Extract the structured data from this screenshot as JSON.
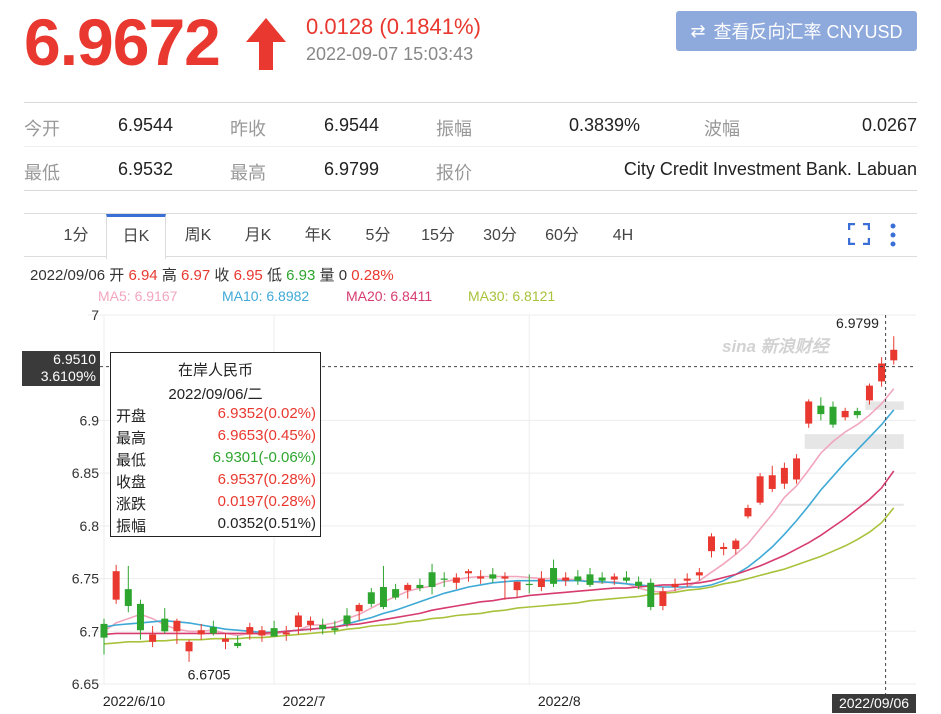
{
  "header": {
    "price": "6.9672",
    "change": "0.0128 (0.1841%)",
    "timestamp": "2022-09-07 15:03:43",
    "reverse_button": "查看反向汇率 CNYUSD",
    "icons": {
      "arrow": "arrow-up-icon",
      "swap": "swap-icon"
    },
    "colors": {
      "up": "#e8382f",
      "button": "#8ea9dc"
    }
  },
  "stats": {
    "row1": [
      {
        "label": "今开",
        "value": "6.9544"
      },
      {
        "label": "昨收",
        "value": "6.9544"
      },
      {
        "label": "振幅",
        "value": "0.3839%"
      },
      {
        "label": "波幅",
        "value": "0.0267"
      }
    ],
    "row2": [
      {
        "label": "最低",
        "value": "6.9532"
      },
      {
        "label": "最高",
        "value": "6.9799"
      },
      {
        "label": "报价",
        "value": "City Credit Investment Bank. Labuan"
      }
    ]
  },
  "tabs": [
    "1分",
    "日K",
    "周K",
    "月K",
    "年K",
    "5分",
    "15分",
    "30分",
    "60分",
    "4H"
  ],
  "active_tab": "日K",
  "info": {
    "date": "2022/09/06",
    "open_label": "开",
    "open": "6.94",
    "high_label": "高",
    "high": "6.97",
    "close_label": "收",
    "close": "6.95",
    "low_label": "低",
    "low": "6.93",
    "vol_label": "量",
    "vol": "0",
    "pct": "0.28%"
  },
  "ma": [
    {
      "text": "MA5: 6.9167",
      "color": "#f2a6bd"
    },
    {
      "text": "MA10: 6.8982",
      "color": "#3fa9d6"
    },
    {
      "text": "MA20: 6.8411",
      "color": "#d63c6e"
    },
    {
      "text": "MA30: 6.8121",
      "color": "#a8c23c"
    }
  ],
  "tooltip": {
    "title": "在岸人民币",
    "date": "2022/09/06/二",
    "rows": [
      {
        "k": "开盘",
        "v": "6.9352(0.02%)",
        "color": "#e8382f"
      },
      {
        "k": "最高",
        "v": "6.9653(0.45%)",
        "color": "#e8382f"
      },
      {
        "k": "最低",
        "v": "6.9301(-0.06%)",
        "color": "#2ea52e"
      },
      {
        "k": "收盘",
        "v": "6.9537(0.28%)",
        "color": "#e8382f"
      },
      {
        "k": "涨跌",
        "v": "0.0197(0.28%)",
        "color": "#e8382f"
      },
      {
        "k": "振幅",
        "v": "0.0352(0.51%)",
        "color": "#222222"
      }
    ]
  },
  "crosshair": {
    "price": "6.9510",
    "pct": "3.6109%",
    "date": "2022/09/06"
  },
  "watermark": "sina 新浪财经",
  "chart_data": {
    "type": "candlestick",
    "ylim": [
      6.65,
      7.0
    ],
    "yticks": [
      7,
      6.9,
      6.85,
      6.8,
      6.75,
      6.7,
      6.65
    ],
    "xtick_labels": [
      {
        "label": "2022/6/10",
        "index": 0
      },
      {
        "label": "2022/7",
        "index": 14
      },
      {
        "label": "2022/8",
        "index": 35
      }
    ],
    "max_label": {
      "text": "6.9799",
      "index": 63,
      "value": 6.9799
    },
    "min_label": {
      "text": "6.6705",
      "index": 7,
      "value": 6.6705
    },
    "candles": [
      {
        "o": 6.707,
        "h": 6.712,
        "l": 6.678,
        "c": 6.694
      },
      {
        "o": 6.73,
        "h": 6.763,
        "l": 6.726,
        "c": 6.757
      },
      {
        "o": 6.74,
        "h": 6.762,
        "l": 6.718,
        "c": 6.724
      },
      {
        "o": 6.726,
        "h": 6.73,
        "l": 6.692,
        "c": 6.701
      },
      {
        "o": 6.69,
        "h": 6.705,
        "l": 6.685,
        "c": 6.697
      },
      {
        "o": 6.712,
        "h": 6.722,
        "l": 6.698,
        "c": 6.7
      },
      {
        "o": 6.7,
        "h": 6.712,
        "l": 6.688,
        "c": 6.71
      },
      {
        "o": 6.681,
        "h": 6.692,
        "l": 6.671,
        "c": 6.69
      },
      {
        "o": 6.697,
        "h": 6.707,
        "l": 6.692,
        "c": 6.701
      },
      {
        "o": 6.704,
        "h": 6.71,
        "l": 6.696,
        "c": 6.698
      },
      {
        "o": 6.69,
        "h": 6.698,
        "l": 6.683,
        "c": 6.693
      },
      {
        "o": 6.689,
        "h": 6.696,
        "l": 6.684,
        "c": 6.686
      },
      {
        "o": 6.697,
        "h": 6.708,
        "l": 6.692,
        "c": 6.704
      },
      {
        "o": 6.696,
        "h": 6.705,
        "l": 6.69,
        "c": 6.701
      },
      {
        "o": 6.703,
        "h": 6.71,
        "l": 6.695,
        "c": 6.695
      },
      {
        "o": 6.697,
        "h": 6.705,
        "l": 6.691,
        "c": 6.699
      },
      {
        "o": 6.704,
        "h": 6.718,
        "l": 6.697,
        "c": 6.715
      },
      {
        "o": 6.706,
        "h": 6.714,
        "l": 6.7,
        "c": 6.71
      },
      {
        "o": 6.706,
        "h": 6.712,
        "l": 6.697,
        "c": 6.702
      },
      {
        "o": 6.703,
        "h": 6.71,
        "l": 6.697,
        "c": 6.701
      },
      {
        "o": 6.715,
        "h": 6.722,
        "l": 6.704,
        "c": 6.707
      },
      {
        "o": 6.719,
        "h": 6.727,
        "l": 6.71,
        "c": 6.725
      },
      {
        "o": 6.737,
        "h": 6.741,
        "l": 6.723,
        "c": 6.726
      },
      {
        "o": 6.742,
        "h": 6.762,
        "l": 6.721,
        "c": 6.723
      },
      {
        "o": 6.74,
        "h": 6.745,
        "l": 6.73,
        "c": 6.732
      },
      {
        "o": 6.739,
        "h": 6.746,
        "l": 6.731,
        "c": 6.744
      },
      {
        "o": 6.744,
        "h": 6.75,
        "l": 6.738,
        "c": 6.741
      },
      {
        "o": 6.756,
        "h": 6.764,
        "l": 6.735,
        "c": 6.742
      },
      {
        "o": 6.75,
        "h": 6.756,
        "l": 6.742,
        "c": 6.749
      },
      {
        "o": 6.746,
        "h": 6.755,
        "l": 6.74,
        "c": 6.751
      },
      {
        "o": 6.755,
        "h": 6.759,
        "l": 6.747,
        "c": 6.757
      },
      {
        "o": 6.75,
        "h": 6.758,
        "l": 6.745,
        "c": 6.752
      },
      {
        "o": 6.754,
        "h": 6.76,
        "l": 6.746,
        "c": 6.75
      },
      {
        "o": 6.75,
        "h": 6.756,
        "l": 6.73,
        "c": 6.752
      },
      {
        "o": 6.739,
        "h": 6.747,
        "l": 6.732,
        "c": 6.747
      },
      {
        "o": 6.745,
        "h": 6.754,
        "l": 6.736,
        "c": 6.744
      },
      {
        "o": 6.742,
        "h": 6.757,
        "l": 6.738,
        "c": 6.75
      },
      {
        "o": 6.76,
        "h": 6.768,
        "l": 6.742,
        "c": 6.745
      },
      {
        "o": 6.748,
        "h": 6.756,
        "l": 6.743,
        "c": 6.751
      },
      {
        "o": 6.752,
        "h": 6.758,
        "l": 6.744,
        "c": 6.748
      },
      {
        "o": 6.754,
        "h": 6.76,
        "l": 6.742,
        "c": 6.744
      },
      {
        "o": 6.751,
        "h": 6.756,
        "l": 6.745,
        "c": 6.748
      },
      {
        "o": 6.749,
        "h": 6.755,
        "l": 6.744,
        "c": 6.752
      },
      {
        "o": 6.751,
        "h": 6.757,
        "l": 6.746,
        "c": 6.748
      },
      {
        "o": 6.747,
        "h": 6.752,
        "l": 6.74,
        "c": 6.743
      },
      {
        "o": 6.746,
        "h": 6.75,
        "l": 6.72,
        "c": 6.723
      },
      {
        "o": 6.724,
        "h": 6.742,
        "l": 6.72,
        "c": 6.738
      },
      {
        "o": 6.742,
        "h": 6.75,
        "l": 6.738,
        "c": 6.745
      },
      {
        "o": 6.748,
        "h": 6.755,
        "l": 6.742,
        "c": 6.75
      },
      {
        "o": 6.753,
        "h": 6.76,
        "l": 6.748,
        "c": 6.756
      },
      {
        "o": 6.776,
        "h": 6.793,
        "l": 6.77,
        "c": 6.79
      },
      {
        "o": 6.778,
        "h": 6.784,
        "l": 6.772,
        "c": 6.78
      },
      {
        "o": 6.778,
        "h": 6.788,
        "l": 6.773,
        "c": 6.786
      },
      {
        "o": 6.809,
        "h": 6.82,
        "l": 6.807,
        "c": 6.817
      },
      {
        "o": 6.822,
        "h": 6.85,
        "l": 6.82,
        "c": 6.847
      },
      {
        "o": 6.835,
        "h": 6.857,
        "l": 6.832,
        "c": 6.848
      },
      {
        "o": 6.84,
        "h": 6.86,
        "l": 6.835,
        "c": 6.855
      },
      {
        "o": 6.844,
        "h": 6.868,
        "l": 6.84,
        "c": 6.864
      },
      {
        "o": 6.897,
        "h": 6.92,
        "l": 6.893,
        "c": 6.918
      },
      {
        "o": 6.914,
        "h": 6.922,
        "l": 6.9,
        "c": 6.906
      },
      {
        "o": 6.913,
        "h": 6.918,
        "l": 6.893,
        "c": 6.896
      },
      {
        "o": 6.903,
        "h": 6.912,
        "l": 6.9,
        "c": 6.909
      },
      {
        "o": 6.909,
        "h": 6.912,
        "l": 6.902,
        "c": 6.905
      },
      {
        "o": 6.919,
        "h": 6.935,
        "l": 6.915,
        "c": 6.933
      },
      {
        "o": 6.937,
        "h": 6.96,
        "l": 6.932,
        "c": 6.954
      },
      {
        "o": 6.957,
        "h": 6.9799,
        "l": 6.953,
        "c": 6.967
      }
    ],
    "ma_series": {
      "MA5": [
        6.7,
        6.708,
        6.712,
        6.716,
        6.712,
        6.706,
        6.702,
        6.7,
        6.7,
        6.701,
        6.698,
        6.696,
        6.698,
        6.697,
        6.697,
        6.7,
        6.701,
        6.706,
        6.706,
        6.708,
        6.712,
        6.716,
        6.722,
        6.728,
        6.733,
        6.738,
        6.741,
        6.743,
        6.747,
        6.749,
        6.751,
        6.752,
        6.752,
        6.752,
        6.752,
        6.751,
        6.75,
        6.75,
        6.749,
        6.749,
        6.747,
        6.746,
        6.747,
        6.745,
        6.741,
        6.738,
        6.737,
        6.739,
        6.742,
        6.748,
        6.756,
        6.764,
        6.773,
        6.783,
        6.797,
        6.811,
        6.827,
        6.838,
        6.853,
        6.869,
        6.88,
        6.889,
        6.896,
        6.905,
        6.916,
        6.93
      ],
      "MA10": [
        6.704,
        6.706,
        6.707,
        6.708,
        6.709,
        6.71,
        6.709,
        6.708,
        6.706,
        6.704,
        6.702,
        6.701,
        6.7,
        6.699,
        6.699,
        6.7,
        6.701,
        6.702,
        6.703,
        6.704,
        6.707,
        6.71,
        6.713,
        6.717,
        6.72,
        6.724,
        6.728,
        6.732,
        6.736,
        6.739,
        6.742,
        6.744,
        6.746,
        6.747,
        6.748,
        6.748,
        6.748,
        6.748,
        6.748,
        6.748,
        6.747,
        6.747,
        6.746,
        6.745,
        6.744,
        6.743,
        6.742,
        6.742,
        6.742,
        6.742,
        6.744,
        6.748,
        6.754,
        6.761,
        6.77,
        6.78,
        6.792,
        6.805,
        6.819,
        6.834,
        6.847,
        6.86,
        6.872,
        6.884,
        6.896,
        6.91
      ],
      "MA20": [
        6.697,
        6.698,
        6.698,
        6.698,
        6.698,
        6.698,
        6.698,
        6.698,
        6.698,
        6.698,
        6.698,
        6.698,
        6.698,
        6.698,
        6.699,
        6.7,
        6.701,
        6.702,
        6.703,
        6.704,
        6.706,
        6.707,
        6.709,
        6.711,
        6.713,
        6.715,
        6.717,
        6.72,
        6.722,
        6.724,
        6.726,
        6.728,
        6.729,
        6.731,
        6.732,
        6.734,
        6.735,
        6.736,
        6.737,
        6.738,
        6.739,
        6.74,
        6.741,
        6.741,
        6.742,
        6.743,
        6.744,
        6.744,
        6.745,
        6.746,
        6.748,
        6.751,
        6.754,
        6.758,
        6.762,
        6.767,
        6.772,
        6.778,
        6.784,
        6.791,
        6.799,
        6.807,
        6.816,
        6.825,
        6.836,
        6.852
      ],
      "MA30": [
        6.688,
        6.689,
        6.69,
        6.69,
        6.691,
        6.691,
        6.692,
        6.692,
        6.692,
        6.693,
        6.693,
        6.693,
        6.694,
        6.694,
        6.695,
        6.696,
        6.697,
        6.698,
        6.699,
        6.7,
        6.702,
        6.703,
        6.705,
        6.706,
        6.707,
        6.709,
        6.71,
        6.712,
        6.713,
        6.715,
        6.716,
        6.717,
        6.719,
        6.72,
        6.722,
        6.723,
        6.724,
        6.725,
        6.726,
        6.727,
        6.729,
        6.73,
        6.731,
        6.732,
        6.733,
        6.735,
        6.736,
        6.737,
        6.739,
        6.74,
        6.742,
        6.745,
        6.747,
        6.75,
        6.753,
        6.756,
        6.759,
        6.763,
        6.767,
        6.771,
        6.776,
        6.781,
        6.787,
        6.794,
        6.803,
        6.817
      ]
    },
    "highlight_bands": [
      {
        "y_low": 6.873,
        "y_high": 6.887,
        "from_index": 58,
        "to_index": 65
      },
      {
        "y_low": 6.91,
        "y_high": 6.918,
        "from_index": 63,
        "to_index": 65
      },
      {
        "y_low": 6.819,
        "y_high": 6.821,
        "from_index": 56,
        "to_index": 65
      }
    ],
    "crosshair_value": 6.951,
    "crosshair_index": 64,
    "colors": {
      "up": "#e8382f",
      "down": "#2ea52e",
      "grid": "#ededed"
    }
  }
}
